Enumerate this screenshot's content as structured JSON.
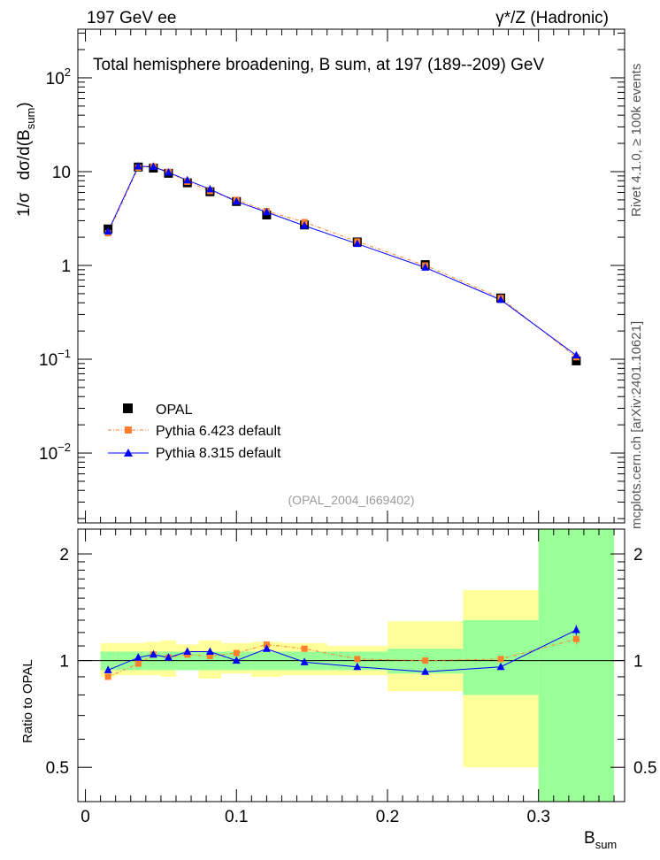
{
  "header": {
    "left": "197 GeV ee",
    "right": "γ*/Z (Hadronic)"
  },
  "side": {
    "rivet": "Rivet 4.1.0, ≥ 100k events",
    "mcplots": "mcplots.cern.ch [arXiv:2401.10621]"
  },
  "colors": {
    "data": "#000000",
    "pythia6": "#ff7f2a",
    "pythia8": "#0000ff",
    "band_inner": "#99ff99",
    "band_outer": "#ffff99"
  },
  "chart_data": [
    {
      "type": "scatter",
      "title": "Total hemisphere broadening, B  sum, at 197 (189--209) GeV",
      "ylabel_parts": [
        "1/σ",
        "dσ/d(B",
        "sum",
        ")"
      ],
      "yscale": "log",
      "ylim": [
        0.0018,
        330
      ],
      "xlim": [
        -0.005,
        0.357
      ],
      "y_ticks": [
        {
          "v": 0.01,
          "base": "10",
          "exp": "−2"
        },
        {
          "v": 0.1,
          "base": "10",
          "exp": "−1"
        },
        {
          "v": 1,
          "label": "1"
        },
        {
          "v": 10,
          "label": "10"
        },
        {
          "v": 100,
          "base": "10",
          "exp": "2"
        }
      ],
      "legend": [
        "OPAL",
        "Pythia 6.423 default",
        "Pythia 8.315 default"
      ],
      "annotation": "(OPAL_2004_I669402)",
      "x": [
        0.015,
        0.035,
        0.045,
        0.055,
        0.0675,
        0.0825,
        0.1,
        0.12,
        0.145,
        0.18,
        0.225,
        0.275,
        0.325
      ],
      "series": [
        {
          "name": "OPAL",
          "values": [
            2.45,
            11.2,
            10.9,
            9.6,
            7.6,
            6.1,
            4.8,
            3.45,
            2.7,
            1.78,
            1.02,
            0.45,
            0.096
          ]
        },
        {
          "name": "Pythia 6.423 default",
          "values": [
            2.2,
            11.0,
            11.4,
            9.9,
            7.8,
            6.2,
            5.0,
            3.8,
            2.9,
            1.8,
            1.0,
            0.45,
            0.105
          ]
        },
        {
          "name": "Pythia 8.315 default",
          "values": [
            2.3,
            11.4,
            11.3,
            9.8,
            8.1,
            6.5,
            4.8,
            3.7,
            2.65,
            1.7,
            0.95,
            0.43,
            0.11
          ]
        }
      ]
    },
    {
      "type": "scatter",
      "ylabel": "Ratio to OPAL",
      "xlabel_main": "B",
      "xlabel_sub": "sum",
      "yscale": "log",
      "ylim": [
        0.4,
        2.35
      ],
      "y_ticks": [
        "0.5",
        "1",
        "2"
      ],
      "x_ticks": [
        "0",
        "0.1",
        "0.2",
        "0.3"
      ],
      "bins": [
        [
          0.01,
          0.02
        ],
        [
          0.02,
          0.04
        ],
        [
          0.04,
          0.05
        ],
        [
          0.05,
          0.06
        ],
        [
          0.06,
          0.075
        ],
        [
          0.075,
          0.09
        ],
        [
          0.09,
          0.11
        ],
        [
          0.11,
          0.13
        ],
        [
          0.13,
          0.16
        ],
        [
          0.16,
          0.2
        ],
        [
          0.2,
          0.25
        ],
        [
          0.25,
          0.3
        ],
        [
          0.3,
          0.35
        ]
      ],
      "band_stat": [
        [
          0.94,
          1.06
        ],
        [
          0.94,
          1.06
        ],
        [
          0.94,
          1.06
        ],
        [
          0.94,
          1.06
        ],
        [
          0.94,
          1.06
        ],
        [
          0.94,
          1.06
        ],
        [
          0.94,
          1.06
        ],
        [
          0.94,
          1.06
        ],
        [
          0.94,
          1.06
        ],
        [
          0.94,
          1.06
        ],
        [
          0.92,
          1.08
        ],
        [
          0.8,
          1.3
        ],
        [
          0.4,
          2.35
        ]
      ],
      "band_total": [
        [
          0.9,
          1.12
        ],
        [
          0.91,
          1.12
        ],
        [
          0.91,
          1.13
        ],
        [
          0.9,
          1.14
        ],
        [
          0.94,
          1.11
        ],
        [
          0.89,
          1.14
        ],
        [
          0.92,
          1.12
        ],
        [
          0.9,
          1.13
        ],
        [
          0.91,
          1.12
        ],
        [
          0.91,
          1.1
        ],
        [
          0.82,
          1.29
        ],
        [
          0.5,
          1.58
        ],
        [
          0.4,
          2.35
        ]
      ],
      "series": [
        {
          "name": "Pythia 6.423 default",
          "values": [
            0.9,
            0.98,
            1.04,
            1.02,
            1.04,
            1.03,
            1.05,
            1.11,
            1.08,
            1.01,
            1.0,
            1.01,
            1.15
          ],
          "errors": [
            0.01,
            0.01,
            0.01,
            0.01,
            0.01,
            0.01,
            0.01,
            0.01,
            0.01,
            0.01,
            0.01,
            0.02,
            0.04
          ]
        },
        {
          "name": "Pythia 8.315 default",
          "values": [
            0.94,
            1.02,
            1.04,
            1.02,
            1.06,
            1.06,
            1.0,
            1.08,
            0.99,
            0.96,
            0.93,
            0.96,
            1.22
          ],
          "errors": [
            0.01,
            0.01,
            0.01,
            0.01,
            0.01,
            0.01,
            0.01,
            0.01,
            0.01,
            0.01,
            0.01,
            0.02,
            0.04
          ]
        }
      ]
    }
  ]
}
